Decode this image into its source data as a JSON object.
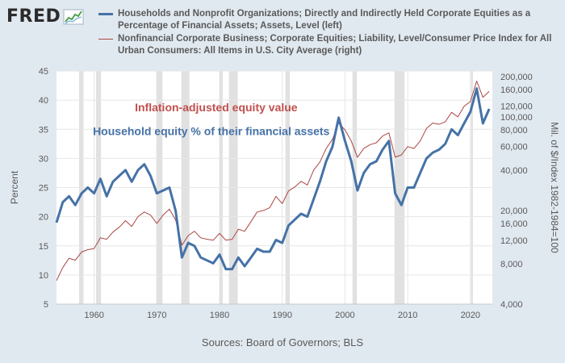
{
  "header": {
    "logo_text": "FRED",
    "logo_icon": "chart-line-icon"
  },
  "legend": [
    {
      "label": "Households and Nonprofit Organizations; Directly and Indirectly Held Corporate Equities as a Percentage of Financial Assets; Assets, Level (left)",
      "color": "#4572a7"
    },
    {
      "label": "Nonfinancial Corporate Business; Corporate Equities; Liability, Level/Consumer Price Index for All Urban Consumers: All Items in U.S. City Average (right)",
      "color": "#aa4643"
    }
  ],
  "source": "Sources: Board of Governors; BLS",
  "chart_data": {
    "type": "line",
    "left_axis": {
      "label": "Percent",
      "range": [
        5,
        45
      ],
      "ticks": [
        5,
        10,
        15,
        20,
        25,
        30,
        35,
        40,
        45
      ]
    },
    "right_axis": {
      "label": "Mil. of $/Index 1982-1984=100",
      "scale": "log",
      "range": [
        4000,
        220000
      ],
      "ticks": [
        4000,
        8000,
        12000,
        16000,
        20000,
        40000,
        60000,
        80000,
        100000,
        120000,
        160000,
        200000
      ],
      "tick_labels": [
        "4,000",
        "8,000",
        "12,000",
        "16,000",
        "20,000",
        "40,000",
        "60,000",
        "80,000",
        "100,000",
        "120,000",
        "160,000",
        "200,000"
      ]
    },
    "x_axis": {
      "range": [
        1954,
        2023.5
      ],
      "ticks": [
        1960,
        1970,
        1980,
        1990,
        2000,
        2010,
        2020
      ],
      "tick_labels": [
        "1960",
        "1970",
        "1980",
        "1990",
        "2000",
        "2010",
        "2020"
      ]
    },
    "recessions": [
      [
        1957.6,
        1958.3
      ],
      [
        1960.3,
        1961.1
      ],
      [
        1969.9,
        1970.9
      ],
      [
        1973.9,
        1975.2
      ],
      [
        1980.0,
        1980.5
      ],
      [
        1981.5,
        1982.9
      ],
      [
        1990.5,
        1991.2
      ],
      [
        2001.2,
        2001.9
      ],
      [
        2007.9,
        2009.5
      ],
      [
        2020.1,
        2020.4
      ]
    ],
    "annotations": [
      {
        "text": "Inflation-adjusted equity value",
        "color": "#c0504d",
        "anchor_x": 1966.5,
        "anchor_y": 110000,
        "axis": "right"
      },
      {
        "text": "Household equity % of their financial assets",
        "color": "#4572a7",
        "anchor_x": 1959.8,
        "anchor_y": 34,
        "axis": "left"
      }
    ],
    "series": [
      {
        "name": "Household equity % of financial assets",
        "axis": "left",
        "color": "#4572a7",
        "x": [
          1954,
          1955,
          1956,
          1957,
          1958,
          1959,
          1960,
          1961,
          1962,
          1963,
          1964,
          1965,
          1966,
          1967,
          1968,
          1969,
          1970,
          1971,
          1972,
          1973,
          1974,
          1975,
          1976,
          1977,
          1978,
          1979,
          1980,
          1981,
          1982,
          1983,
          1984,
          1985,
          1986,
          1987,
          1988,
          1989,
          1990,
          1991,
          1992,
          1993,
          1994,
          1995,
          1996,
          1997,
          1998,
          1999,
          2000,
          2001,
          2002,
          2003,
          2004,
          2005,
          2006,
          2007,
          2008,
          2009,
          2010,
          2011,
          2012,
          2013,
          2014,
          2015,
          2016,
          2017,
          2018,
          2019,
          2020,
          2021,
          2022,
          2023
        ],
        "values": [
          19,
          22.5,
          23.5,
          22,
          24,
          25,
          24,
          26.5,
          23.5,
          26,
          27,
          28,
          26,
          28,
          29,
          27,
          24,
          24.5,
          25,
          21,
          13,
          15.5,
          15,
          13,
          12.5,
          12,
          13.5,
          11,
          11,
          13,
          11.5,
          13,
          14.5,
          14,
          14,
          16,
          15.5,
          18.5,
          19.5,
          20.5,
          20,
          23,
          26,
          29.5,
          32,
          37,
          33,
          29.5,
          24.5,
          27.5,
          29,
          29.5,
          31.5,
          33,
          24,
          22,
          25,
          25,
          27.5,
          30,
          31,
          31.5,
          32.5,
          35,
          34,
          36,
          38,
          42,
          36,
          38.5
        ]
      },
      {
        "name": "Inflation-adjusted equity value",
        "axis": "right",
        "color": "#aa4643",
        "x": [
          1954,
          1955,
          1956,
          1957,
          1958,
          1959,
          1960,
          1961,
          1962,
          1963,
          1964,
          1965,
          1966,
          1967,
          1968,
          1969,
          1970,
          1971,
          1972,
          1973,
          1974,
          1975,
          1976,
          1977,
          1978,
          1979,
          1980,
          1981,
          1982,
          1983,
          1984,
          1985,
          1986,
          1987,
          1988,
          1989,
          1990,
          1991,
          1992,
          1993,
          1994,
          1995,
          1996,
          1997,
          1998,
          1999,
          2000,
          2001,
          2002,
          2003,
          2004,
          2005,
          2006,
          2007,
          2008,
          2009,
          2010,
          2011,
          2012,
          2013,
          2014,
          2015,
          2016,
          2017,
          2018,
          2019,
          2020,
          2021,
          2022,
          2023
        ],
        "values": [
          6000,
          7500,
          8800,
          8500,
          9800,
          10200,
          10400,
          12500,
          12200,
          13800,
          15000,
          16800,
          15200,
          18000,
          19500,
          18500,
          16000,
          18500,
          20500,
          17000,
          11000,
          13000,
          14000,
          12500,
          12200,
          12000,
          13500,
          12000,
          12200,
          14500,
          14000,
          16500,
          19500,
          20000,
          21000,
          25500,
          22500,
          28000,
          30000,
          33000,
          31000,
          40000,
          46000,
          58000,
          68000,
          90000,
          80000,
          66000,
          50000,
          58000,
          62000,
          64000,
          72000,
          76000,
          50000,
          52000,
          60000,
          58000,
          66000,
          82000,
          90000,
          88000,
          92000,
          108000,
          100000,
          120000,
          130000,
          185000,
          140000,
          155000
        ]
      }
    ]
  }
}
